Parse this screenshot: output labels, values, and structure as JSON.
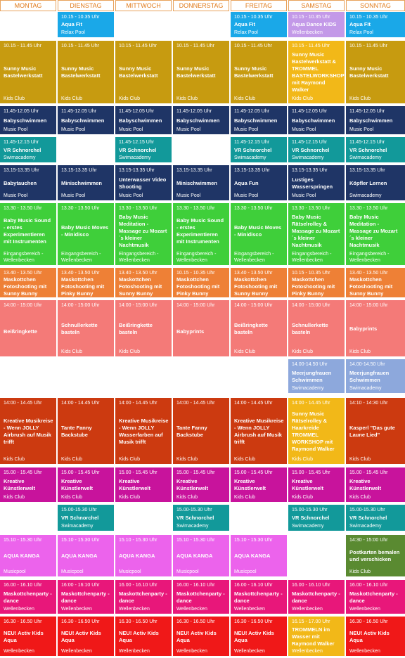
{
  "days": [
    "MONTAG",
    "DIENSTAG",
    "MITTWOCH",
    "DONNERSTAG",
    "FREITAG",
    "SAMSTAG",
    "SONNTAG"
  ],
  "colors": {
    "aqua": "#1aa8e8",
    "kids": "#c79b10",
    "kidsSat": "#f2b818",
    "navy": "#1f3566",
    "teal": "#12999a",
    "green": "#3fcf3a",
    "orange": "#ee8036",
    "salmon": "#f47a78",
    "lavender": "#8da8dc",
    "rust": "#cc3a10",
    "magenta": "#c8139c",
    "pink": "#ec63ec",
    "hotpink": "#e8177a",
    "red": "#f01818",
    "purple": "#c399e8",
    "olive": "#5a8a31"
  },
  "rows": [
    {
      "top": 17,
      "h": 36,
      "cells": [
        null,
        {
          "time": "10.15 - 10.35 Uhr",
          "title": "Aqua Fit",
          "loc": "Relax Pool",
          "color": "aqua",
          "top": true
        },
        null,
        null,
        {
          "time": "10.15 - 10.35 Uhr",
          "title": "Aqua Fit",
          "loc": "Relax Pool",
          "color": "aqua",
          "top": true
        },
        {
          "time": "10.15 - 10.35 Uhr",
          "title": "Aqua Dance KIDS",
          "loc": "Wellenbecken",
          "color": "purple",
          "top": true
        },
        {
          "time": "10.15 - 10.35 Uhr",
          "title": "Aqua Fit",
          "loc": "Relax Pool",
          "color": "aqua",
          "top": true
        }
      ]
    },
    {
      "top": 58,
      "h": 89,
      "cells": [
        {
          "time": "10.15 - 11.45 Uhr",
          "title": "Sunny Music Bastelwerkstatt",
          "loc": "Kids Club",
          "color": "kids"
        },
        {
          "time": "10.15 - 11.45 Uhr",
          "title": "Sunny Music Bastelwerkstatt",
          "loc": "Kids Club",
          "color": "kids"
        },
        {
          "time": "10.15 - 11.45 Uhr",
          "title": "Sunny Music Bastelwerkstatt",
          "loc": "Kids Club",
          "color": "kids"
        },
        {
          "time": "10.15 - 11.45 Uhr",
          "title": "Sunny Music Bastelwerkstatt",
          "loc": "Kids Club",
          "color": "kids"
        },
        {
          "time": "10.15 - 11.45 Uhr",
          "title": "Sunny Music Bastelwerkstatt",
          "loc": "Kids Club",
          "color": "kids"
        },
        {
          "time": "10.15 - 11.45 Uhr",
          "title": "Sunny Music Bastelwerkstatt & TROMMEL BASTELWORKSHOP mit Raymond Walker",
          "loc": "Kids Club",
          "color": "kidsSat"
        },
        {
          "time": "10.15 - 11.45 Uhr",
          "title": "Sunny Music Bastelwerkstatt",
          "loc": "Kids Club",
          "color": "kids"
        }
      ]
    },
    {
      "top": 151,
      "h": 40,
      "cells": [
        {
          "time": "11.45-12.05 Uhr",
          "title": "Babyschwimmen",
          "loc": "Music Pool",
          "color": "navy"
        },
        {
          "time": "11.45-12.05 Uhr",
          "title": "Babyschwimmen",
          "loc": "Music Pool",
          "color": "navy"
        },
        {
          "time": "11.45-12.05 Uhr",
          "title": "Babyschwimmen",
          "loc": "Music Pool",
          "color": "navy"
        },
        {
          "time": "11.45-12.05 Uhr",
          "title": "Babyschwimmen",
          "loc": "Music Pool",
          "color": "navy"
        },
        {
          "time": "11.45-12.05 Uhr",
          "title": "Babyschwimmen",
          "loc": "Music Pool",
          "color": "navy"
        },
        {
          "time": "11.45-12.05 Uhr",
          "title": "Babyschwimmen",
          "loc": "Music Pool",
          "color": "navy"
        },
        {
          "time": "11.45-12.05 Uhr",
          "title": "Babyschwimmen",
          "loc": "Music Pool",
          "color": "navy"
        }
      ]
    },
    {
      "top": 195,
      "h": 36,
      "cells": [
        {
          "time": "11.45-12.15 Uhr",
          "title": "VR Schnorchel",
          "loc": "Swimacademy",
          "color": "teal"
        },
        null,
        {
          "time": "11.45-12.15 Uhr",
          "title": "VR Schnorchel",
          "loc": "Swimacademy",
          "color": "teal"
        },
        null,
        {
          "time": "11.45-12.15 Uhr",
          "title": "VR Schnorchel",
          "loc": "Swimacademy",
          "color": "teal"
        },
        {
          "time": "11.45-12.15 Uhr",
          "title": "VR Schnorchel",
          "loc": "Swimacademy",
          "color": "teal"
        },
        {
          "time": "11.45-12.15 Uhr",
          "title": "VR Schnorchel",
          "loc": "Swimacademy",
          "color": "teal"
        }
      ]
    },
    {
      "top": 235,
      "h": 50,
      "cells": [
        {
          "time": "13.15-13.35 Uhr",
          "title": "Babytauchen",
          "loc": "Music Pool",
          "color": "navy"
        },
        {
          "time": "13.15-13.35 Uhr",
          "title": "Minischwimmen",
          "loc": "Music Pool",
          "color": "navy"
        },
        {
          "time": "13.15-13.35 Uhr",
          "title": "Unterwasser Video Shooting",
          "loc": "Music Pool",
          "color": "navy"
        },
        {
          "time": "13.15-13.35 Uhr",
          "title": "Minischwimmen",
          "loc": "Music Pool",
          "color": "navy"
        },
        {
          "time": "13.15-13.35 Uhr",
          "title": "Aqua Fun",
          "loc": "Music Pool",
          "color": "navy"
        },
        {
          "time": "13.15-13.35 Uhr",
          "title": "Lustiges Wasserspringen",
          "loc": "Music Pool",
          "color": "navy"
        },
        {
          "time": "13.15-13.35 Uhr",
          "title": "Köpfler Lernen",
          "loc": "Swimacademy",
          "color": "navy"
        }
      ]
    },
    {
      "top": 289,
      "h": 88,
      "cells": [
        {
          "time": "13.30 - 13.50 Uhr",
          "title": "Baby Music Sound - erstes Experimentieren mit Instrumenten",
          "loc": "Eingangsbereich - Wellenbecken",
          "color": "green"
        },
        {
          "time": "13.30 - 13.50 Uhr",
          "title": "Baby Music Moves - Minidisco",
          "loc": "Eingangsbereich - Wellenbecken",
          "color": "green"
        },
        {
          "time": "13.30 - 13.50 Uhr",
          "title": "Baby Music Meditation - Massage zu Mozart´s kleiner Nachtmusik",
          "loc": "Eingangsbereich - Wellenbecken",
          "color": "green"
        },
        {
          "time": "13.30 - 13.50 Uhr",
          "title": "Baby Music Sound - erstes Experimentieren mit Instrumenten",
          "loc": "Eingangsbereich - Wellenbecken",
          "color": "green"
        },
        {
          "time": "13.30 - 13.50 Uhr",
          "title": "Baby Music Moves - Minidisco",
          "loc": "Eingangsbereich - Wellenbecken",
          "color": "green"
        },
        {
          "time": "13.30 - 13.50 Uhr",
          "title": "Baby Music Rätselrolley & Massage zu Mozart´s kleiner Nachtmusik",
          "loc": "Eingangsbereich - Wellenbecken",
          "color": "green"
        },
        {
          "time": "13.30 - 13.50 Uhr",
          "title": "Baby Music Meditation - Massage zu Mozart´s kleiner Nachtmusik",
          "loc": "Eingangsbereich - Wellenbecken",
          "color": "green"
        }
      ]
    },
    {
      "top": 381,
      "h": 42,
      "cells": [
        {
          "time": "13.40 - 13.50 Uhr",
          "title": "Maskottchen Fotoshooting mit Sunny Bunny",
          "loc": "Eingangsbereich - Wellenbecken",
          "color": "orange"
        },
        {
          "time": "13.40 - 13.50 Uhr",
          "title": "Maskottchen Fotoshooting mit Pinky Bunny",
          "loc": "Eingangsbereich - Wellenbecken",
          "color": "orange"
        },
        {
          "time": "13.40 - 13.50 Uhr",
          "title": "Maskottchen Fotoshooting mit Sunny Bunny",
          "loc": "Eingangsbereich - Wellenbecken",
          "color": "orange"
        },
        {
          "time": "10.15 - 10.35 Uhr",
          "title": "Maskottchen Fotoshooting mit Pinky Bunny",
          "loc": "Eingangsbereich - Wellenbecken",
          "color": "orange"
        },
        {
          "time": "13.40 - 13.50 Uhr",
          "title": "Maskottchen Fotoshooting mit Sunny Bunny",
          "loc": "Eingangsbereich - Wellenbecken",
          "color": "orange"
        },
        {
          "time": "10.15 - 10.35 Uhr",
          "title": "Maskottchen Fotoshooting mit Pinky Bunny",
          "loc": "Eingangsbereich - Wellenbecken",
          "color": "orange"
        },
        {
          "time": "13.40 - 13.50 Uhr",
          "title": "Maskottchen Fotoshooting mit Sunny Bunny",
          "loc": "Eingangsbereich - Wellenbecken",
          "color": "orange"
        }
      ]
    },
    {
      "top": 427,
      "h": 80,
      "cells": [
        {
          "time": "14:00 - 15:00 Uhr",
          "title": "Beißringkette",
          "loc": "",
          "color": "salmon"
        },
        {
          "time": "14:00 - 15:00 Uhr",
          "title": "Schnullerkette basteln",
          "loc": "Kids Club",
          "color": "salmon"
        },
        {
          "time": "14:00 - 15:00 Uhr",
          "title": "Beißringkette basteln",
          "loc": "Kids Club",
          "color": "salmon"
        },
        {
          "time": "14:00 - 15:00 Uhr",
          "title": "Babyprints",
          "loc": "",
          "color": "salmon"
        },
        {
          "time": "14:00 - 15:00 Uhr",
          "title": "Beißringkette basteln",
          "loc": "Kids Club",
          "color": "salmon"
        },
        {
          "time": "14:00 - 15:00 Uhr",
          "title": "Schnullerkette basteln",
          "loc": "Kids Club",
          "color": "salmon"
        },
        {
          "time": "14:00 - 15:00 Uhr",
          "title": "Babyprints",
          "loc": "Kids Club",
          "color": "salmon"
        }
      ]
    },
    {
      "top": 511,
      "h": 48,
      "cells": [
        null,
        null,
        null,
        null,
        null,
        {
          "time": "14.00-14.50 Uhr",
          "title": "Meerjungfrauen Schwimmen",
          "loc": "Swimacademy",
          "color": "lavender"
        },
        {
          "time": "14.00-14.50 Uhr",
          "title": "Meerjungfrauen Schwimmen",
          "loc": "Swimacademy",
          "color": "lavender"
        }
      ]
    },
    {
      "top": 566,
      "h": 94,
      "cells": [
        {
          "time": "14:00 - 14.45 Uhr",
          "title": "Kreative Musikreise - Wenn JOLLY Airbrush auf Musik trifft",
          "loc": "Kids Club",
          "color": "rust"
        },
        {
          "time": "14:00 - 14.45 Uhr",
          "title": "Tante Fanny Backstube",
          "loc": "Kids Club",
          "color": "rust"
        },
        {
          "time": "14:00 - 14.45 Uhr",
          "title": "Kreative Musikreise - Wenn JOLLY Wasserfarben auf Musik trifft",
          "loc": "Kids Club",
          "color": "rust"
        },
        {
          "time": "14:00 - 14.45 Uhr",
          "title": "Tante Fanny Backstube",
          "loc": "Kids Club",
          "color": "rust"
        },
        {
          "time": "14:00 - 14.45 Uhr",
          "title": "Kreative Musikreise - Wenn JOLLY Airbrush auf Musik trifft",
          "loc": "Kids Club",
          "color": "rust"
        },
        {
          "time": "14:00 - 14.45 Uhr",
          "title": "Sunny Music Rätselrolley & Haarkreide TROMMEL WORKSHOP mit Raymond Walker",
          "loc": "Kids Club",
          "color": "kidsSat"
        },
        {
          "time": "14:10 - 14:30 Uhr",
          "title": "Kasperl \"Das gute Laune Lied\"",
          "loc": "Kids Club",
          "color": "rust"
        }
      ]
    },
    {
      "top": 665,
      "h": 49,
      "cells": [
        {
          "time": "15.00 - 15.45 Uhr",
          "title": "Kreative Künstlerwelt",
          "loc": "Kids Club",
          "color": "magenta"
        },
        {
          "time": "15.00 - 15.45 Uhr",
          "title": "Kreative Künstlerwelt",
          "loc": "Kids Club",
          "color": "magenta"
        },
        {
          "time": "15.00 - 15.45 Uhr",
          "title": "Kreative Künstlerwelt",
          "loc": "Kids Club",
          "color": "magenta"
        },
        {
          "time": "15.00 - 15.45 Uhr",
          "title": "Kreative Künstlerwelt",
          "loc": "Kids Club",
          "color": "magenta"
        },
        {
          "time": "15.00 - 15.45 Uhr",
          "title": "Kreative Künstlerwelt",
          "loc": "Kids Club",
          "color": "magenta"
        },
        {
          "time": "15.00 - 15.45 Uhr",
          "title": "Kreative Künstlerwelt",
          "loc": "Kids Club",
          "color": "magenta"
        },
        {
          "time": "15.00 - 15.45 Uhr",
          "title": "Kreative Künstlerwelt",
          "loc": "Kids Club",
          "color": "magenta"
        }
      ]
    },
    {
      "top": 718,
      "h": 37,
      "cells": [
        null,
        {
          "time": "15.00-15.30 Uhr",
          "title": "VR Schnorchel",
          "loc": "Swimacademy",
          "color": "teal"
        },
        null,
        {
          "time": "15.00-15.30 Uhr",
          "title": "VR Schnorchel",
          "loc": "Swimacademy",
          "color": "teal"
        },
        null,
        {
          "time": "15.00-15.30 Uhr",
          "title": "VR Schnorchel",
          "loc": "Swimacademy",
          "color": "teal"
        },
        {
          "time": "15.00-15.30 Uhr",
          "title": "VR Schnorchel",
          "loc": "Swimacademy",
          "color": "teal"
        }
      ]
    },
    {
      "top": 761,
      "h": 59,
      "cells": [
        {
          "time": "15.10 - 15.30 Uhr",
          "title": "AQUA KANGA",
          "loc": "Musicpool",
          "color": "pink"
        },
        {
          "time": "15.10 - 15.30 Uhr",
          "title": "AQUA KANGA",
          "loc": "Musicpool",
          "color": "pink"
        },
        {
          "time": "15.10 - 15.30 Uhr",
          "title": "AQUA KANGA",
          "loc": "Musicpool",
          "color": "pink"
        },
        {
          "time": "15.10 - 15.30 Uhr",
          "title": "AQUA KANGA",
          "loc": "Musicpool",
          "color": "pink"
        },
        {
          "time": "15.10 - 15.30 Uhr",
          "title": "AQUA KANGA",
          "loc": "Musicpool",
          "color": "pink"
        },
        null,
        {
          "time": "14:30 - 15:00 Uhr",
          "title": "Postkarten bemalen und verschicken",
          "loc": "Kids Club",
          "color": "olive"
        }
      ]
    },
    {
      "top": 825,
      "h": 48,
      "cells": [
        {
          "time": "16.00 - 16.10 Uhr",
          "title": "Maskottchenparty - dance",
          "loc": "Wellenbecken",
          "color": "hotpink"
        },
        {
          "time": "16:00 - 16:10 Uhr",
          "title": "Maskottchenparty - dance",
          "loc": "Wellenbecken",
          "color": "hotpink"
        },
        {
          "time": "16.00 - 16.10 Uhr",
          "title": "Maskottchenparty - dance",
          "loc": "Wellenbecken",
          "color": "hotpink"
        },
        {
          "time": "16.00 - 16.10 Uhr",
          "title": "Maskottchenparty - dance",
          "loc": "Wellenbecken",
          "color": "hotpink"
        },
        {
          "time": "16.00 - 16.10 Uhr",
          "title": "Maskottchenparty - dance",
          "loc": "Wellenbecken",
          "color": "hotpink"
        },
        {
          "time": "16.00 - 16.10 Uhr",
          "title": "Maskottchenparty - dance",
          "loc": "Wellenbecken",
          "color": "hotpink"
        },
        {
          "time": "16.00 - 16.10 Uhr",
          "title": "Maskottchenparty - dance",
          "loc": "Wellenbecken",
          "color": "hotpink"
        }
      ]
    },
    {
      "top": 877,
      "h": 56,
      "cells": [
        {
          "time": "16.30 - 16.50 Uhr",
          "title": "NEU! Activ Kids Aqua",
          "loc": "Wellenbecken",
          "color": "red"
        },
        {
          "time": "16.30 - 16.50 Uhr",
          "title": "NEU! Activ Kids Aqua",
          "loc": "Wellenbecken",
          "color": "red"
        },
        {
          "time": "16.30 - 16.50 Uhr",
          "title": "NEU! Activ Kids Aqua",
          "loc": "Wellenbecken",
          "color": "red"
        },
        {
          "time": "16.30 - 16.50 Uhr",
          "title": "NEU! Activ Kids Aqua",
          "loc": "Wellenbecken",
          "color": "red"
        },
        {
          "time": "16.30 - 16.50 Uhr",
          "title": "NEU! Activ Kids Aqua",
          "loc": "Wellenbecken",
          "color": "red"
        },
        {
          "time": "16.15 - 17.00 Uhr",
          "title": "TROMMELN im Wasser mit Raymond Walker",
          "loc": "Wellenbecken",
          "color": "kidsSat"
        },
        {
          "time": "16.30 - 16.50 Uhr",
          "title": "NEU! Activ Kids Aqua",
          "loc": "Wellenbecken",
          "color": "red"
        }
      ]
    }
  ]
}
